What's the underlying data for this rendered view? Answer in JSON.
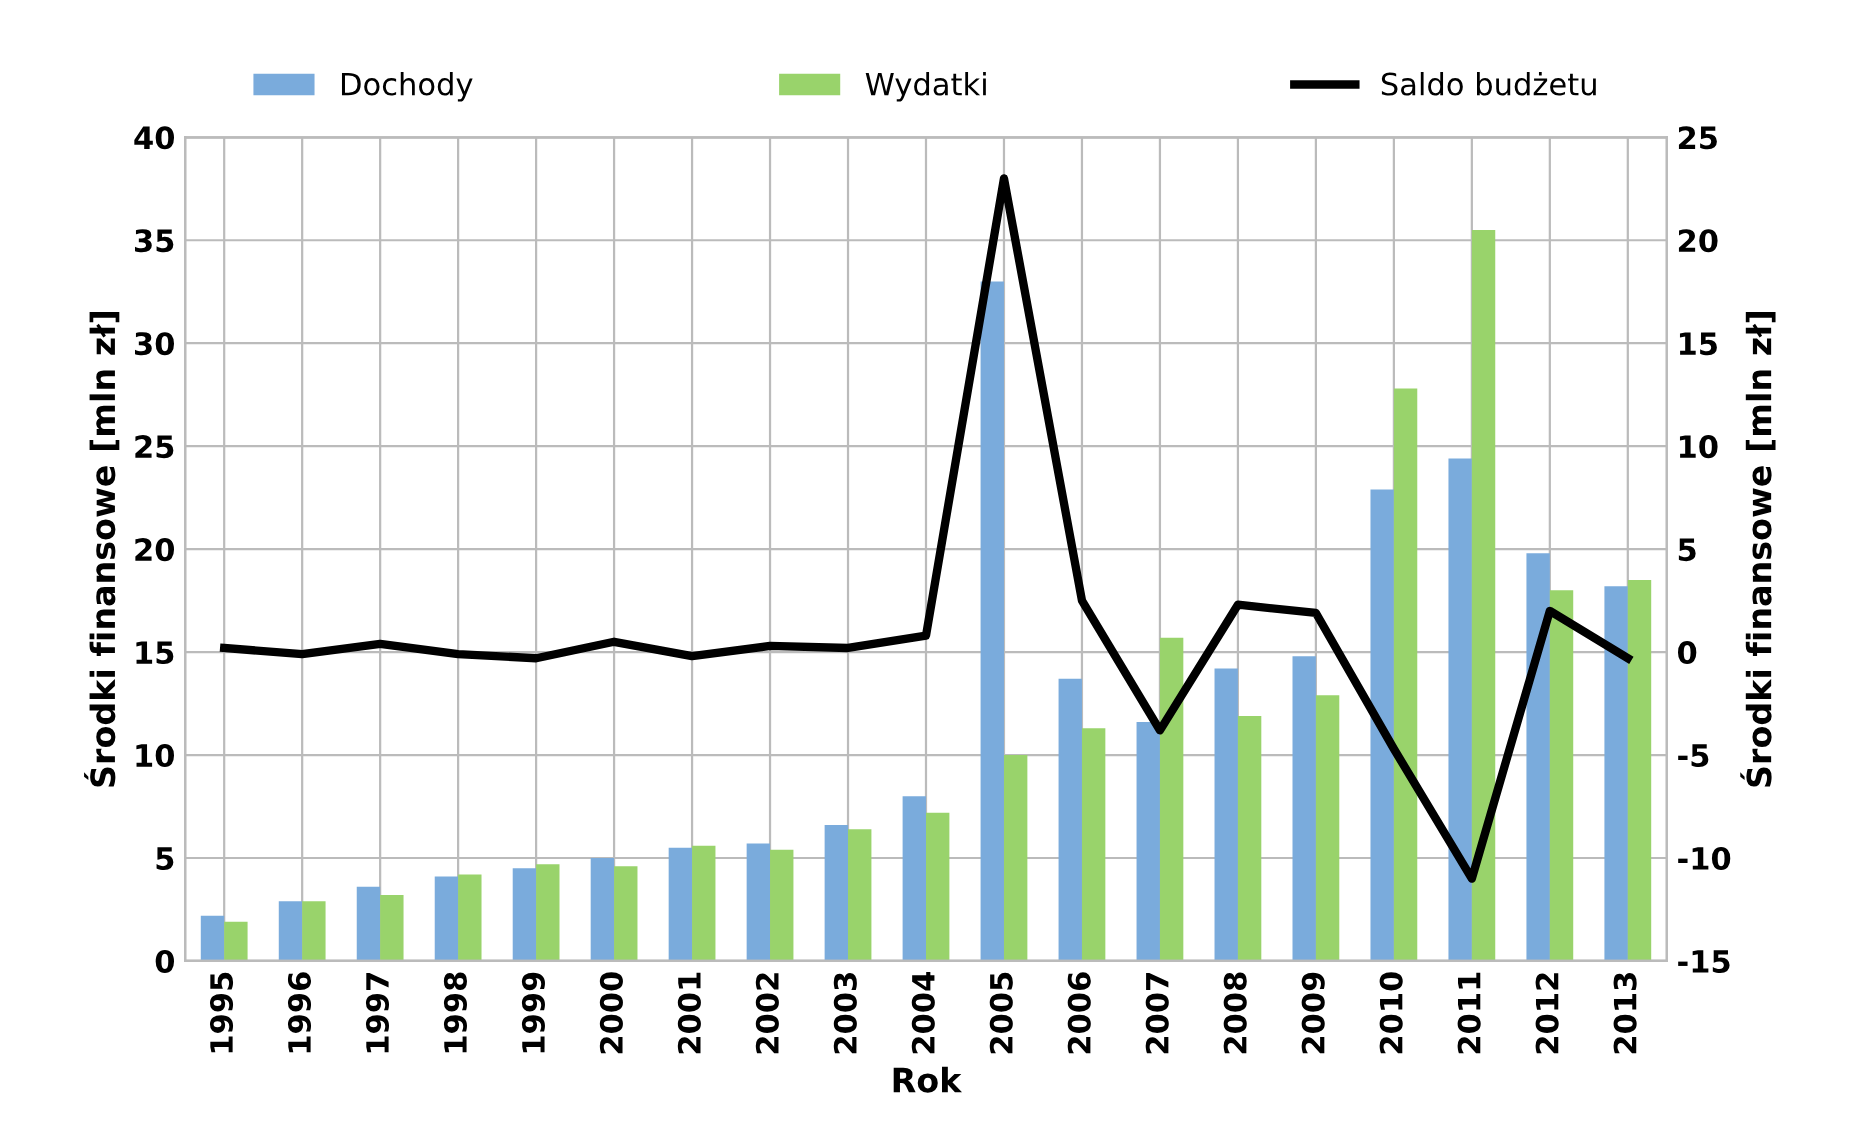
{
  "chart_data": {
    "type": "bar",
    "xlabel": "Rok",
    "ylabel": "Środki finansowe [mln zł]",
    "y2label": "Środki finansowe [mln zł]",
    "categories": [
      "1995",
      "1996",
      "1997",
      "1998",
      "1999",
      "2000",
      "2001",
      "2002",
      "2003",
      "2004",
      "2005",
      "2006",
      "2007",
      "2008",
      "2009",
      "2010",
      "2011",
      "2012",
      "2013"
    ],
    "series": [
      {
        "name": "Dochody",
        "color": "#7aabdc",
        "values": [
          2.2,
          2.9,
          3.6,
          4.1,
          4.5,
          5.0,
          5.5,
          5.7,
          6.6,
          8.0,
          33.0,
          13.7,
          11.6,
          14.2,
          14.8,
          22.9,
          24.4,
          19.8,
          18.2
        ]
      },
      {
        "name": "Wydatki",
        "color": "#99d36b",
        "values": [
          1.9,
          2.9,
          3.2,
          4.2,
          4.7,
          4.6,
          5.6,
          5.4,
          6.4,
          7.2,
          10.0,
          11.3,
          15.7,
          11.9,
          12.9,
          27.8,
          35.5,
          18.0,
          18.5
        ]
      },
      {
        "name": "Saldo budżetu",
        "type": "line",
        "axis": "y2",
        "color": "#000000",
        "values": [
          0.2,
          -0.1,
          0.4,
          -0.1,
          -0.3,
          0.5,
          -0.2,
          0.3,
          0.2,
          0.8,
          23.0,
          2.5,
          -3.8,
          2.3,
          1.9,
          -4.7,
          -11.0,
          2.0,
          -0.3
        ]
      }
    ],
    "ylim": [
      0,
      40
    ],
    "yticks": [
      0,
      5,
      10,
      15,
      20,
      25,
      30,
      35,
      40
    ],
    "y2lim": [
      -15,
      25
    ],
    "y2ticks": [
      -15,
      -10,
      -5,
      0,
      5,
      10,
      15,
      20,
      25
    ],
    "grid": true,
    "legend": "top",
    "marker": "none",
    "line_style": "solid"
  }
}
